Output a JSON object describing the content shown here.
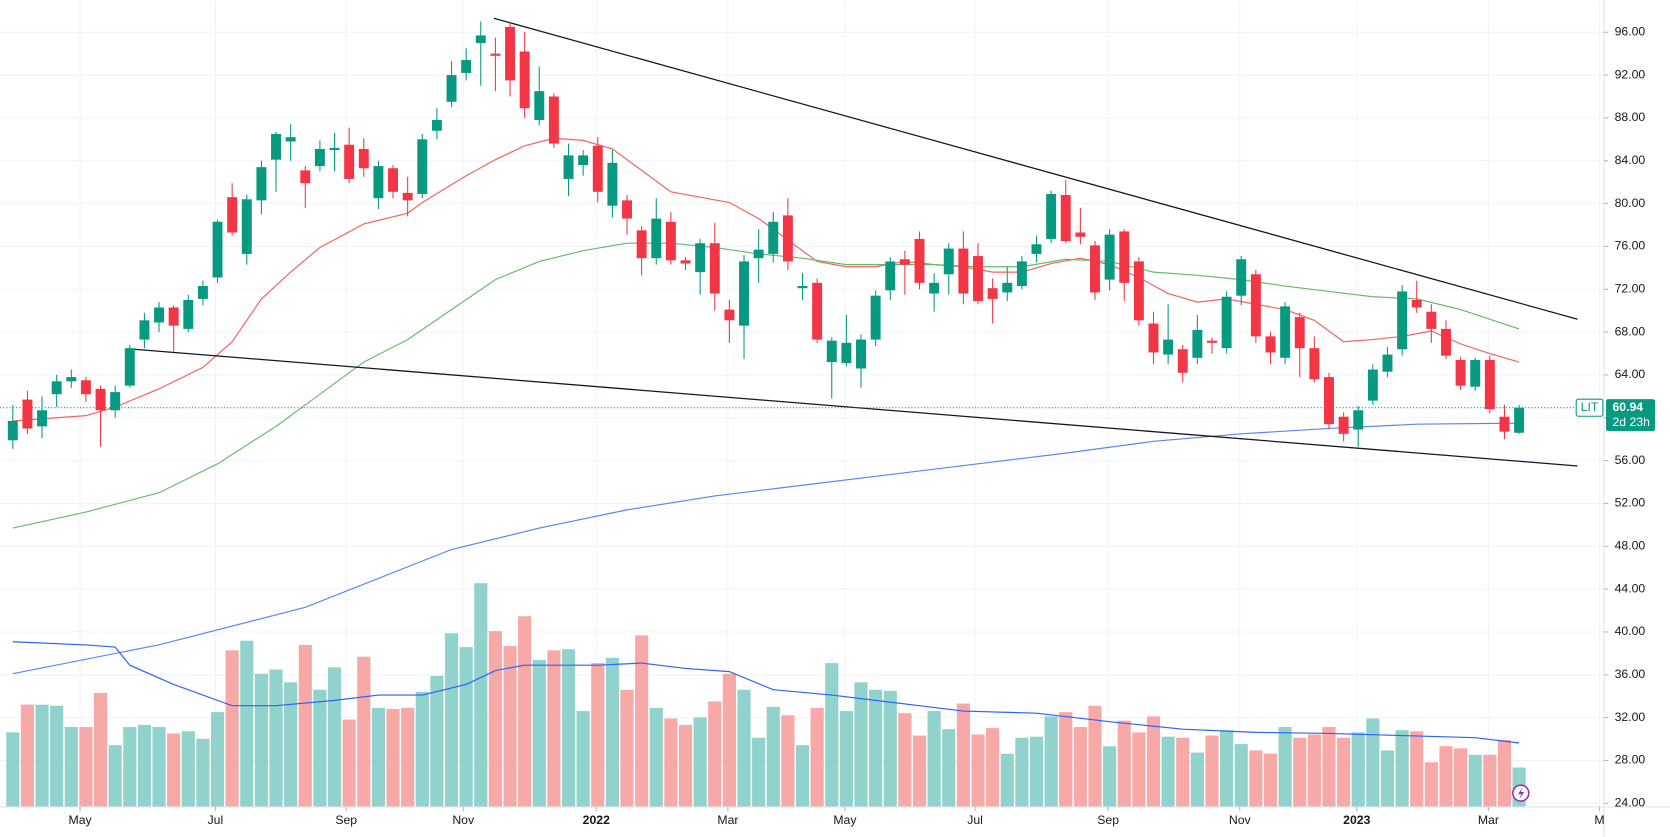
{
  "chart_data": {
    "type": "candlestick",
    "symbol": "LIT",
    "last_price": 60.94,
    "countdown": "2d 23h",
    "up_color": "#089981",
    "down_color": "#f23645",
    "open": [
      57.9,
      61.7,
      59.2,
      62.2,
      63.4,
      63.5,
      62.7,
      60.7,
      63,
      67.3,
      68.9,
      70.3,
      68.3,
      71.1,
      73.1,
      80.6,
      75.3,
      80.3,
      84.1,
      85.8,
      83.1,
      83.5,
      85,
      85.5,
      85.1,
      80.5,
      83.3,
      81,
      80.9,
      86.8,
      89.5,
      92.2,
      95,
      94,
      96.5,
      94.2,
      87.8,
      90,
      82.3,
      83.6,
      85.4,
      79.8,
      80.3,
      77.5,
      74.9,
      78.3,
      74.7,
      73.6,
      76.3,
      70.1,
      68.6,
      74.9,
      75.3,
      78.9,
      72.1,
      72.6,
      65.2,
      65.1,
      64.6,
      67.3,
      71.9,
      74.8,
      76.7,
      71.6,
      73.4,
      75.8,
      75.1,
      72.1,
      71.7,
      72.3,
      75.3,
      76.7,
      80.8,
      77.3,
      76.1,
      72.9,
      77.4,
      74.6,
      68.8,
      65.9,
      66.4,
      65.6,
      67.2,
      66.5,
      71.4,
      73.4,
      67.6,
      65.6,
      69.4,
      66.5,
      63.8,
      60.1,
      58.9,
      61.6,
      64.3,
      66.4,
      71,
      69.9,
      68.3,
      65.4,
      62.9,
      65.4,
      60.1,
      58.6
    ],
    "high": [
      61.2,
      62.5,
      62,
      64,
      64.5,
      63.8,
      63,
      63,
      66.8,
      69.8,
      70.8,
      70.5,
      71.5,
      72.8,
      78.5,
      81.9,
      80.8,
      84,
      86.7,
      87.4,
      83.5,
      85.9,
      86.6,
      87.1,
      86.1,
      84,
      83.6,
      82.5,
      86.5,
      88.9,
      93.3,
      94.5,
      97,
      95.5,
      96.9,
      96,
      92.8,
      90.3,
      85.6,
      85,
      86.2,
      85,
      80.8,
      77.9,
      80.5,
      79.2,
      75,
      76.7,
      78.2,
      71,
      75.2,
      77.6,
      79.2,
      80.5,
      73.5,
      73,
      67.5,
      69.6,
      67.8,
      71.9,
      75,
      75.6,
      77.4,
      73.5,
      76.3,
      77.4,
      76.3,
      73,
      74.1,
      75.1,
      77,
      81.2,
      82.2,
      79.6,
      76.5,
      77.6,
      77.6,
      75,
      69.9,
      70.6,
      66.8,
      69.6,
      67.5,
      71.8,
      75.1,
      73.8,
      68,
      70.8,
      69.8,
      67.6,
      64.2,
      60.5,
      61.1,
      65,
      66.6,
      72.4,
      72.8,
      70.6,
      69.1,
      65.7,
      65.6,
      65.8,
      61.2,
      61.2
    ],
    "low": [
      57.1,
      58.5,
      58.1,
      61,
      62.8,
      61.5,
      57.3,
      60,
      62.8,
      66.5,
      68,
      66.2,
      68,
      70.5,
      72.6,
      77,
      74.3,
      79,
      81.1,
      84,
      79.6,
      83,
      83,
      81.9,
      82.5,
      79.5,
      80.5,
      78.8,
      80.5,
      86,
      89,
      91.5,
      91,
      90.5,
      90,
      88,
      87.3,
      85.2,
      80.7,
      82.6,
      80.1,
      78.7,
      77.1,
      73.3,
      74.3,
      74.3,
      73.8,
      71.5,
      70,
      67,
      65.5,
      72.6,
      74.5,
      73.8,
      71,
      67,
      61.8,
      64.8,
      62.8,
      66.7,
      71,
      71.5,
      72,
      69.9,
      71.5,
      70.6,
      70.6,
      68.8,
      70.9,
      72,
      74.5,
      76.3,
      76.3,
      76.2,
      71,
      71.9,
      70.9,
      68.6,
      65,
      65,
      63.3,
      65,
      66,
      66,
      70.5,
      67,
      65,
      65,
      63.8,
      63.3,
      58.9,
      57.8,
      57.3,
      61.2,
      63.8,
      65.8,
      69.8,
      67,
      65.5,
      62.6,
      62.5,
      60.4,
      58,
      58.5
    ],
    "close": [
      59.7,
      59,
      60.7,
      63.4,
      63.8,
      62.2,
      60.7,
      62.4,
      66.5,
      69.1,
      70.3,
      68.6,
      71,
      72.3,
      78.3,
      77.3,
      80.4,
      83.4,
      86.5,
      86.2,
      81.9,
      85.1,
      85.2,
      82.3,
      83.3,
      83.5,
      81.1,
      80.3,
      86,
      87.8,
      92,
      93.4,
      95.7,
      93.8,
      91.5,
      88.9,
      90.5,
      85.6,
      84.5,
      84.5,
      81.1,
      83.8,
      78.6,
      74.9,
      78.6,
      74.7,
      74.4,
      76.3,
      71.6,
      69.1,
      74.6,
      75.7,
      78.3,
      74.6,
      72.3,
      67.3,
      67.2,
      67,
      67.3,
      71.4,
      74.6,
      74.3,
      72.6,
      72.6,
      75.8,
      71.6,
      70.9,
      71.1,
      72.6,
      74.6,
      76.2,
      80.9,
      76.5,
      76.9,
      71.7,
      77.1,
      72.6,
      69.1,
      66.1,
      67.3,
      64.2,
      68.2,
      67,
      71.3,
      74.8,
      67.6,
      66.1,
      70.4,
      66.5,
      63.6,
      59.4,
      58.5,
      60.7,
      64.5,
      65.9,
      71.8,
      70.3,
      68.3,
      65.8,
      63,
      65.4,
      60.8,
      58.7,
      60.94
    ],
    "volume": {
      "axis": "y2",
      "up_color": "#92d2cc",
      "down_color": "#f7a9a7",
      "values": [
        70,
        96,
        96,
        95,
        75,
        75,
        107,
        58,
        75,
        77,
        75,
        69,
        71,
        64,
        89,
        147,
        156,
        125,
        129,
        117,
        152,
        110,
        131,
        82,
        141,
        93,
        92,
        93,
        108,
        123,
        163,
        150,
        210,
        165,
        151,
        179,
        138,
        147,
        148,
        90,
        135,
        140,
        110,
        161,
        93,
        83,
        77,
        84,
        99,
        125,
        110,
        65,
        94,
        86,
        58,
        93,
        135,
        90,
        117,
        110,
        109,
        88,
        67,
        90,
        73,
        97,
        68,
        74,
        50,
        65,
        66,
        85,
        89,
        75,
        95,
        57,
        81,
        70,
        85,
        66,
        65,
        51,
        67,
        72,
        59,
        53,
        50,
        75,
        65,
        68,
        75,
        65,
        70,
        83,
        53,
        72,
        71,
        42,
        57,
        55,
        49,
        49,
        63,
        37
      ]
    },
    "overlays": [
      {
        "color": "#f7625f",
        "x": [
          0,
          5,
          7,
          10,
          13,
          15,
          17,
          19,
          21,
          24,
          27,
          28,
          31,
          33,
          35,
          37,
          39,
          41,
          43,
          45,
          47,
          49,
          51,
          53,
          55,
          57,
          59,
          61,
          63,
          65,
          67,
          69,
          71,
          73,
          75,
          77,
          79,
          81,
          83,
          85,
          87,
          89,
          91,
          93,
          95,
          97,
          99,
          101,
          103
        ],
        "values": [
          59.7,
          60.2,
          61,
          62.7,
          64.7,
          67.1,
          71.1,
          73.6,
          75.9,
          78.1,
          79.1,
          80.1,
          82.6,
          84.1,
          85.4,
          86.1,
          85.9,
          85.1,
          83.1,
          81.1,
          80.6,
          80.1,
          78.6,
          76.6,
          74.6,
          74.1,
          74.1,
          74.6,
          74.3,
          74.1,
          73.6,
          73.6,
          74.4,
          74.9,
          74.3,
          73.1,
          71.6,
          70.8,
          71.1,
          70.6,
          70.1,
          69.1,
          67.1,
          67.3,
          67.6,
          68.1,
          66.9,
          66,
          65.2
        ]
      },
      {
        "color": "#66bb6a",
        "x": [
          0,
          5,
          10,
          14,
          18,
          21,
          24,
          27,
          30,
          33,
          36,
          39,
          42,
          45,
          48,
          51,
          54,
          57,
          60,
          63,
          66,
          69,
          72,
          75,
          78,
          81,
          84,
          87,
          90,
          93,
          96,
          99,
          103
        ],
        "values": [
          49.7,
          51.2,
          53,
          55.7,
          59.2,
          62.2,
          65.2,
          67.3,
          70.1,
          72.9,
          74.6,
          75.6,
          76.3,
          76.3,
          75.9,
          75.3,
          74.9,
          74.3,
          74.3,
          74.3,
          74.1,
          74.1,
          74.8,
          74.6,
          73.6,
          73.3,
          72.9,
          72.3,
          71.8,
          71.3,
          71.1,
          70.1,
          68.3
        ]
      },
      {
        "color": "#5b86f0",
        "x": [
          0,
          10,
          20,
          30,
          36,
          42,
          48,
          54,
          60,
          66,
          72,
          78,
          84,
          90,
          96,
          103
        ],
        "values": [
          36.1,
          38.8,
          42.3,
          47.7,
          49.7,
          51.4,
          52.7,
          53.7,
          54.7,
          55.7,
          56.7,
          57.8,
          58.5,
          59,
          59.4,
          59.5
        ]
      },
      {
        "color": "#2962ff",
        "axis": "y2",
        "x": [
          0,
          5,
          7,
          8,
          11,
          14,
          15,
          18,
          22,
          25,
          28,
          31,
          33,
          35,
          40,
          43,
          46,
          49,
          52,
          56,
          59,
          62,
          65,
          70,
          75,
          80,
          85,
          90,
          95,
          100,
          103
        ],
        "values": [
          155,
          152,
          150,
          133,
          115,
          100,
          95,
          95,
          100,
          105,
          105,
          115,
          128,
          133,
          133,
          135,
          130,
          127,
          110,
          105,
          100,
          95,
          90,
          88,
          80,
          73,
          70,
          69,
          67,
          65,
          60
        ]
      }
    ],
    "trendlines": [
      {
        "color": "#131722",
        "x": [
          32.9,
          107
        ],
        "values": [
          97.3,
          69.2
        ]
      },
      {
        "color": "#131722",
        "x": [
          8.3,
          107
        ],
        "values": [
          66.4,
          55.5
        ]
      }
    ],
    "xlim": [
      -0.875,
      108.8
    ],
    "xticks": [
      {
        "value": 4.6,
        "label": "May"
      },
      {
        "value": 13.85,
        "label": "Jul"
      },
      {
        "value": 22.8,
        "label": "Sep"
      },
      {
        "value": 30.8,
        "label": "Nov"
      },
      {
        "value": 39.9,
        "label": "2022"
      },
      {
        "value": 48.9,
        "label": "Mar"
      },
      {
        "value": 56.9,
        "label": "May"
      },
      {
        "value": 65.8,
        "label": "Jul"
      },
      {
        "value": 74.9,
        "label": "Sep"
      },
      {
        "value": 83.9,
        "label": "Nov"
      },
      {
        "value": 91.9,
        "label": "2023"
      },
      {
        "value": 100.9,
        "label": "Mar"
      },
      {
        "value": 108.5,
        "label": "M"
      }
    ],
    "ylim": [
      23.66,
      98.99
    ],
    "yticks": [
      {
        "value": 24,
        "label": "24.00"
      },
      {
        "value": 28,
        "label": "28.00"
      },
      {
        "value": 32,
        "label": "32.00"
      },
      {
        "value": 36,
        "label": "36.00"
      },
      {
        "value": 40,
        "label": "40.00"
      },
      {
        "value": 44,
        "label": "44.00"
      },
      {
        "value": 48,
        "label": "48.00"
      },
      {
        "value": 52,
        "label": "52.00"
      },
      {
        "value": 56,
        "label": "56.00"
      },
      {
        "value": 60,
        "label": "60.00"
      },
      {
        "value": 64,
        "label": "64.00"
      },
      {
        "value": 68,
        "label": "68.00"
      },
      {
        "value": 72,
        "label": "72.00"
      },
      {
        "value": 76,
        "label": "76.00"
      },
      {
        "value": 80,
        "label": "80.00"
      },
      {
        "value": 84,
        "label": "84.00"
      },
      {
        "value": 88,
        "label": "88.00"
      },
      {
        "value": 92,
        "label": "92.00"
      },
      {
        "value": 96,
        "label": "96.00"
      }
    ],
    "y2lim": [
      0,
      757
    ],
    "grid": true
  }
}
